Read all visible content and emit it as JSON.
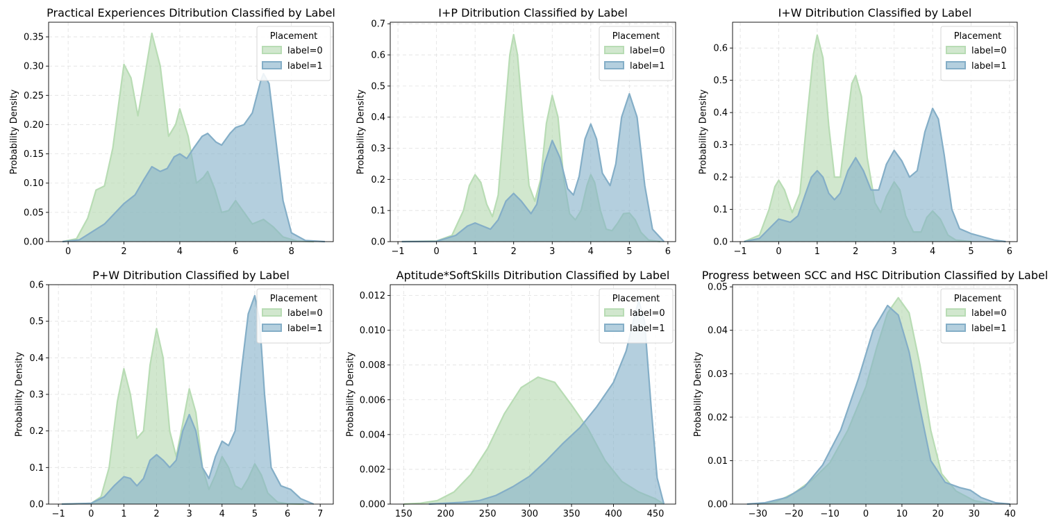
{
  "chart_data": [
    {
      "type": "area",
      "title": "Practical Experiences Ditribution Classified by Label",
      "xlabel": "",
      "ylabel": "Probability Density",
      "xlim": [
        -0.7,
        9.5
      ],
      "ylim": [
        0,
        0.375
      ],
      "xticks": [
        0,
        2,
        4,
        6,
        8
      ],
      "xtick_labels": [
        "0",
        "2",
        "4",
        "6",
        "8"
      ],
      "yticks": [
        0,
        0.05,
        0.1,
        0.15,
        0.2,
        0.25,
        0.3,
        0.35
      ],
      "ytick_labels": [
        "0.00",
        "0.05",
        "0.10",
        "0.15",
        "0.20",
        "0.25",
        "0.30",
        "0.35"
      ],
      "grid": true,
      "legend": {
        "title": "Placement",
        "position": "top-right"
      },
      "series": [
        {
          "name": "label=0",
          "x": [
            -0.2,
            0.3,
            0.7,
            1.0,
            1.3,
            1.6,
            2.0,
            2.25,
            2.5,
            2.7,
            3.0,
            3.3,
            3.6,
            3.85,
            4.0,
            4.3,
            4.6,
            4.85,
            5.0,
            5.25,
            5.5,
            5.75,
            6.0,
            6.3,
            6.6,
            7.0,
            7.35,
            7.7,
            8.2,
            8.8
          ],
          "y": [
            0.0,
            0.005,
            0.04,
            0.088,
            0.095,
            0.16,
            0.303,
            0.28,
            0.215,
            0.27,
            0.356,
            0.3,
            0.18,
            0.2,
            0.227,
            0.18,
            0.1,
            0.11,
            0.12,
            0.09,
            0.05,
            0.053,
            0.07,
            0.05,
            0.03,
            0.038,
            0.025,
            0.008,
            0.001,
            0.0
          ]
        },
        {
          "name": "label=1",
          "x": [
            -0.2,
            0.4,
            0.9,
            1.3,
            1.7,
            2.0,
            2.4,
            2.7,
            3.0,
            3.3,
            3.55,
            3.8,
            4.0,
            4.25,
            4.5,
            4.8,
            5.0,
            5.3,
            5.5,
            5.8,
            6.0,
            6.3,
            6.6,
            6.9,
            7.0,
            7.2,
            7.45,
            7.7,
            8.0,
            8.5,
            9.2
          ],
          "y": [
            0.0,
            0.003,
            0.018,
            0.03,
            0.05,
            0.065,
            0.08,
            0.105,
            0.128,
            0.12,
            0.125,
            0.145,
            0.15,
            0.142,
            0.16,
            0.18,
            0.185,
            0.17,
            0.165,
            0.185,
            0.195,
            0.2,
            0.22,
            0.275,
            0.287,
            0.27,
            0.17,
            0.07,
            0.015,
            0.002,
            0.0
          ]
        }
      ]
    },
    {
      "type": "area",
      "title": "I+P Ditribution Classified by Label",
      "xlabel": "",
      "ylabel": "Probability Density",
      "xlim": [
        -1.2,
        6.2
      ],
      "ylim": [
        0,
        0.705
      ],
      "xticks": [
        -1,
        0,
        1,
        2,
        3,
        4,
        5,
        6
      ],
      "xtick_labels": [
        "−1",
        "0",
        "1",
        "2",
        "3",
        "4",
        "5",
        "6"
      ],
      "yticks": [
        0,
        0.1,
        0.2,
        0.3,
        0.4,
        0.5,
        0.6,
        0.7
      ],
      "ytick_labels": [
        "0.0",
        "0.1",
        "0.2",
        "0.3",
        "0.4",
        "0.5",
        "0.6",
        "0.7"
      ],
      "grid": true,
      "legend": {
        "title": "Placement",
        "position": "top-right"
      },
      "series": [
        {
          "name": "label=0",
          "x": [
            -0.9,
            0.0,
            0.4,
            0.7,
            0.85,
            1.0,
            1.15,
            1.3,
            1.45,
            1.6,
            1.75,
            1.9,
            2.0,
            2.1,
            2.25,
            2.4,
            2.55,
            2.7,
            2.85,
            3.0,
            3.15,
            3.3,
            3.45,
            3.6,
            3.75,
            3.9,
            4.0,
            4.1,
            4.25,
            4.4,
            4.55,
            4.7,
            4.85,
            5.0,
            5.15,
            5.3,
            5.5,
            5.8
          ],
          "y": [
            0.0,
            0.002,
            0.02,
            0.1,
            0.18,
            0.215,
            0.19,
            0.12,
            0.08,
            0.15,
            0.38,
            0.6,
            0.665,
            0.6,
            0.38,
            0.18,
            0.13,
            0.2,
            0.38,
            0.47,
            0.4,
            0.2,
            0.09,
            0.07,
            0.1,
            0.18,
            0.215,
            0.19,
            0.1,
            0.04,
            0.035,
            0.06,
            0.09,
            0.092,
            0.07,
            0.03,
            0.005,
            0.0
          ]
        },
        {
          "name": "label=1",
          "x": [
            -0.9,
            0.0,
            0.5,
            0.8,
            1.0,
            1.2,
            1.4,
            1.6,
            1.8,
            2.0,
            2.2,
            2.45,
            2.6,
            2.8,
            3.0,
            3.2,
            3.4,
            3.55,
            3.7,
            3.85,
            4.0,
            4.15,
            4.3,
            4.5,
            4.65,
            4.8,
            5.0,
            5.2,
            5.4,
            5.6,
            5.9
          ],
          "y": [
            0.0,
            0.001,
            0.02,
            0.05,
            0.06,
            0.05,
            0.04,
            0.07,
            0.13,
            0.155,
            0.13,
            0.09,
            0.12,
            0.25,
            0.325,
            0.27,
            0.17,
            0.15,
            0.21,
            0.33,
            0.378,
            0.33,
            0.22,
            0.18,
            0.25,
            0.4,
            0.475,
            0.4,
            0.18,
            0.04,
            0.0
          ]
        }
      ]
    },
    {
      "type": "area",
      "title": "I+W Ditribution Classified by Label",
      "xlabel": "",
      "ylabel": "Probability Density",
      "xlim": [
        -1.2,
        6.2
      ],
      "ylim": [
        0,
        0.68
      ],
      "xticks": [
        -1,
        0,
        1,
        2,
        3,
        4,
        5,
        6
      ],
      "xtick_labels": [
        "−1",
        "0",
        "1",
        "2",
        "3",
        "4",
        "5",
        "6"
      ],
      "yticks": [
        0,
        0.1,
        0.2,
        0.3,
        0.4,
        0.5,
        0.6
      ],
      "ytick_labels": [
        "0.0",
        "0.1",
        "0.2",
        "0.3",
        "0.4",
        "0.5",
        "0.6"
      ],
      "grid": true,
      "legend": {
        "title": "Placement",
        "position": "top-right"
      },
      "series": [
        {
          "name": "label=0",
          "x": [
            -0.9,
            -0.5,
            -0.25,
            -0.1,
            0.0,
            0.15,
            0.35,
            0.55,
            0.75,
            0.9,
            1.0,
            1.15,
            1.3,
            1.45,
            1.6,
            1.75,
            1.9,
            2.0,
            2.15,
            2.3,
            2.5,
            2.65,
            2.8,
            3.0,
            3.15,
            3.3,
            3.5,
            3.7,
            3.85,
            4.0,
            4.2,
            4.4,
            4.6,
            5.0
          ],
          "y": [
            0.0,
            0.02,
            0.1,
            0.17,
            0.19,
            0.16,
            0.09,
            0.15,
            0.4,
            0.58,
            0.64,
            0.57,
            0.36,
            0.2,
            0.2,
            0.35,
            0.49,
            0.515,
            0.45,
            0.26,
            0.12,
            0.09,
            0.14,
            0.185,
            0.16,
            0.08,
            0.03,
            0.03,
            0.075,
            0.095,
            0.07,
            0.02,
            0.005,
            0.0
          ]
        },
        {
          "name": "label=1",
          "x": [
            -0.9,
            -0.5,
            -0.25,
            0.0,
            0.3,
            0.5,
            0.7,
            0.85,
            1.0,
            1.15,
            1.3,
            1.45,
            1.6,
            1.8,
            2.0,
            2.2,
            2.4,
            2.6,
            2.8,
            3.0,
            3.2,
            3.4,
            3.6,
            3.8,
            4.0,
            4.15,
            4.3,
            4.5,
            4.7,
            5.0,
            5.3,
            5.6,
            5.9
          ],
          "y": [
            0.0,
            0.01,
            0.04,
            0.07,
            0.06,
            0.08,
            0.15,
            0.2,
            0.22,
            0.2,
            0.15,
            0.13,
            0.15,
            0.22,
            0.26,
            0.22,
            0.16,
            0.16,
            0.24,
            0.283,
            0.25,
            0.2,
            0.22,
            0.34,
            0.413,
            0.38,
            0.27,
            0.1,
            0.04,
            0.025,
            0.015,
            0.005,
            0.0
          ]
        }
      ]
    },
    {
      "type": "area",
      "title": "P+W Ditribution Classified by Label",
      "xlabel": "",
      "ylabel": "Probability Density",
      "xlim": [
        -1.3,
        7.4
      ],
      "ylim": [
        0,
        0.6
      ],
      "xticks": [
        -1,
        0,
        1,
        2,
        3,
        4,
        5,
        6,
        7
      ],
      "xtick_labels": [
        "−1",
        "0",
        "1",
        "2",
        "3",
        "4",
        "5",
        "6",
        "7"
      ],
      "yticks": [
        0,
        0.1,
        0.2,
        0.3,
        0.4,
        0.5,
        0.6
      ],
      "ytick_labels": [
        "0.0",
        "0.1",
        "0.2",
        "0.3",
        "0.4",
        "0.5",
        "0.6"
      ],
      "grid": true,
      "legend": {
        "title": "Placement",
        "position": "top-right"
      },
      "series": [
        {
          "name": "label=0",
          "x": [
            -0.9,
            0.0,
            0.3,
            0.55,
            0.8,
            1.0,
            1.2,
            1.4,
            1.6,
            1.8,
            2.0,
            2.2,
            2.4,
            2.6,
            2.8,
            3.0,
            3.2,
            3.4,
            3.6,
            3.8,
            4.0,
            4.2,
            4.4,
            4.6,
            4.8,
            5.0,
            5.2,
            5.4,
            5.7,
            6.0,
            6.5
          ],
          "y": [
            0.0,
            0.002,
            0.02,
            0.1,
            0.28,
            0.37,
            0.3,
            0.18,
            0.2,
            0.38,
            0.48,
            0.4,
            0.2,
            0.13,
            0.22,
            0.315,
            0.25,
            0.1,
            0.04,
            0.08,
            0.13,
            0.1,
            0.05,
            0.04,
            0.07,
            0.11,
            0.08,
            0.03,
            0.005,
            0.001,
            0.0
          ]
        },
        {
          "name": "label=1",
          "x": [
            -0.9,
            0.0,
            0.4,
            0.7,
            1.0,
            1.2,
            1.4,
            1.6,
            1.8,
            2.0,
            2.2,
            2.4,
            2.6,
            2.8,
            3.0,
            3.2,
            3.4,
            3.6,
            3.8,
            4.0,
            4.2,
            4.4,
            4.6,
            4.8,
            5.0,
            5.15,
            5.3,
            5.5,
            5.8,
            6.1,
            6.4,
            6.8
          ],
          "y": [
            0.0,
            0.002,
            0.02,
            0.05,
            0.075,
            0.07,
            0.05,
            0.07,
            0.12,
            0.135,
            0.12,
            0.1,
            0.12,
            0.2,
            0.245,
            0.2,
            0.1,
            0.07,
            0.13,
            0.172,
            0.16,
            0.2,
            0.37,
            0.52,
            0.57,
            0.5,
            0.3,
            0.1,
            0.05,
            0.04,
            0.015,
            0.0
          ]
        }
      ]
    },
    {
      "type": "area",
      "title": "Aptitude*SoftSkills Ditribution Classified by Label",
      "xlabel": "",
      "ylabel": "Probability Density",
      "xlim": [
        134,
        474
      ],
      "ylim": [
        0,
        0.01262
      ],
      "xticks": [
        150,
        200,
        250,
        300,
        350,
        400,
        450
      ],
      "xtick_labels": [
        "150",
        "200",
        "250",
        "300",
        "350",
        "400",
        "450"
      ],
      "yticks": [
        0,
        0.002,
        0.004,
        0.006,
        0.008,
        0.01,
        0.012
      ],
      "ytick_labels": [
        "0.000",
        "0.002",
        "0.004",
        "0.006",
        "0.008",
        "0.010",
        "0.012"
      ],
      "grid": true,
      "legend": {
        "title": "Placement",
        "position": "top-right"
      },
      "series": [
        {
          "name": "label=0",
          "x": [
            150,
            170,
            190,
            210,
            230,
            250,
            270,
            290,
            310,
            330,
            350,
            370,
            390,
            410,
            430,
            450,
            460
          ],
          "y": [
            0.0,
            5e-05,
            0.0002,
            0.0007,
            0.0017,
            0.0032,
            0.0052,
            0.0067,
            0.0073,
            0.007,
            0.0057,
            0.0043,
            0.0025,
            0.0013,
            0.0007,
            0.0003,
            0.0
          ]
        },
        {
          "name": "label=1",
          "x": [
            180,
            200,
            220,
            240,
            260,
            280,
            300,
            320,
            340,
            360,
            380,
            400,
            415,
            425,
            430,
            437,
            445,
            452,
            460
          ],
          "y": [
            0.0,
            5e-05,
            0.0001,
            0.0002,
            0.0005,
            0.001,
            0.0016,
            0.0025,
            0.0035,
            0.0044,
            0.0056,
            0.007,
            0.0088,
            0.0108,
            0.0117,
            0.0105,
            0.0055,
            0.0015,
            0.0
          ]
        }
      ]
    },
    {
      "type": "area",
      "title": "Progress between SCC and HSC Ditribution Classified by Label",
      "xlabel": "",
      "ylabel": "Probability Density",
      "xlim": [
        -37,
        42
      ],
      "ylim": [
        0,
        0.0505
      ],
      "xticks": [
        -30,
        -20,
        -10,
        0,
        10,
        20,
        30,
        40
      ],
      "xtick_labels": [
        "−30",
        "−20",
        "−10",
        "0",
        "10",
        "20",
        "30",
        "40"
      ],
      "yticks": [
        0,
        0.01,
        0.02,
        0.03,
        0.04,
        0.05
      ],
      "ytick_labels": [
        "0.00",
        "0.01",
        "0.02",
        "0.03",
        "0.04",
        "0.05"
      ],
      "grid": true,
      "legend": {
        "title": "Placement",
        "position": "top-right"
      },
      "series": [
        {
          "name": "label=0",
          "x": [
            -30,
            -25,
            -20,
            -15,
            -10,
            -5,
            0,
            3,
            6,
            9,
            12,
            15,
            18,
            21,
            25,
            30,
            35
          ],
          "y": [
            0.0,
            0.0005,
            0.0025,
            0.0055,
            0.0095,
            0.017,
            0.027,
            0.036,
            0.044,
            0.0475,
            0.044,
            0.032,
            0.017,
            0.007,
            0.003,
            0.0008,
            0.0
          ]
        },
        {
          "name": "label=1",
          "x": [
            -33,
            -28,
            -22,
            -17,
            -12,
            -7,
            -2,
            2,
            6,
            9,
            12,
            15,
            18,
            22,
            26,
            29,
            32,
            36,
            40
          ],
          "y": [
            0.0,
            0.0003,
            0.0015,
            0.004,
            0.009,
            0.017,
            0.029,
            0.04,
            0.0457,
            0.0435,
            0.035,
            0.022,
            0.01,
            0.005,
            0.0038,
            0.0032,
            0.0015,
            0.0003,
            0.0
          ]
        }
      ]
    }
  ],
  "colors": {
    "label0": "#b5d9b0",
    "label1": "#86b2ca",
    "label0_edge": "#b8dcb4",
    "label1_edge": "#84aec7"
  }
}
